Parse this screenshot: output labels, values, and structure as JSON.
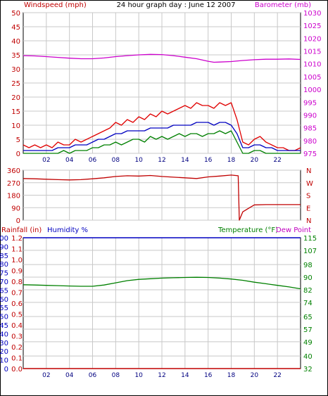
{
  "colors": {
    "wind_speed": "#e00000",
    "wind_avg": "#0000c0",
    "wind_min": "#008000",
    "barometer": "#cc00cc",
    "direction": "#c00000",
    "rainfall": "#c00000",
    "humidity": "#0000c0",
    "temperature": "#008000",
    "dew_point": "#c000c0",
    "grid": "#c8c8c8",
    "frame": "#000000"
  },
  "chart_data": [
    {
      "type": "line",
      "title": "24 hour graph day : June 12 2007",
      "ylabel": "Windspeed (mph)",
      "y2label": "Barometer (mb)",
      "y_ticks": [
        "0",
        "5",
        "10",
        "15",
        "20",
        "25",
        "30",
        "35",
        "40",
        "45",
        "50"
      ],
      "y2_ticks": [
        "975",
        "980",
        "985",
        "990",
        "995",
        "1000",
        "1005",
        "1010",
        "1015",
        "1020",
        "1025",
        "1030"
      ],
      "x_ticks": [
        "02",
        "04",
        "06",
        "08",
        "10",
        "12",
        "14",
        "16",
        "18",
        "20",
        "22"
      ],
      "ylim": [
        0,
        50
      ],
      "y2lim": [
        975,
        1030
      ],
      "xlim": [
        0,
        24
      ],
      "grid": true,
      "series": [
        {
          "key": "wind_gust",
          "axis": "left",
          "x": [
            0,
            0.5,
            1,
            1.5,
            2,
            2.5,
            3,
            3.5,
            4,
            4.5,
            5,
            5.5,
            6,
            6.5,
            7,
            7.5,
            8,
            8.5,
            9,
            9.5,
            10,
            10.5,
            11,
            11.5,
            12,
            12.5,
            13,
            13.5,
            14,
            14.5,
            15,
            15.5,
            16,
            16.5,
            17,
            17.5,
            18,
            18.5,
            19,
            19.5,
            20,
            20.5,
            21,
            21.5,
            22,
            22.5,
            23,
            23.5,
            24
          ],
          "y": [
            3,
            2,
            3,
            2,
            3,
            2,
            4,
            3,
            3,
            5,
            4,
            5,
            6,
            7,
            8,
            9,
            11,
            10,
            12,
            11,
            13,
            12,
            14,
            13,
            15,
            14,
            15,
            16,
            17,
            16,
            18,
            17,
            17,
            16,
            18,
            17,
            18,
            12,
            4,
            3,
            5,
            6,
            4,
            3,
            2,
            2,
            1,
            1,
            2
          ]
        },
        {
          "key": "wind_avg",
          "axis": "left",
          "x": [
            0,
            0.5,
            1,
            1.5,
            2,
            2.5,
            3,
            3.5,
            4,
            4.5,
            5,
            5.5,
            6,
            6.5,
            7,
            7.5,
            8,
            8.5,
            9,
            9.5,
            10,
            10.5,
            11,
            11.5,
            12,
            12.5,
            13,
            13.5,
            14,
            14.5,
            15,
            15.5,
            16,
            16.5,
            17,
            17.5,
            18,
            18.5,
            19,
            19.5,
            20,
            20.5,
            21,
            21.5,
            22,
            22.5,
            23,
            23.5,
            24
          ],
          "y": [
            1,
            1,
            1,
            1,
            1,
            1,
            2,
            2,
            2,
            3,
            3,
            3,
            4,
            5,
            5,
            6,
            7,
            7,
            8,
            8,
            8,
            8,
            9,
            9,
            9,
            9,
            10,
            10,
            10,
            10,
            11,
            11,
            11,
            10,
            11,
            11,
            10,
            7,
            2,
            2,
            3,
            3,
            2,
            2,
            1,
            1,
            1,
            1,
            1
          ]
        },
        {
          "key": "wind_min",
          "axis": "left",
          "x": [
            0,
            0.5,
            1,
            1.5,
            2,
            2.5,
            3,
            3.5,
            4,
            4.5,
            5,
            5.5,
            6,
            6.5,
            7,
            7.5,
            8,
            8.5,
            9,
            9.5,
            10,
            10.5,
            11,
            11.5,
            12,
            12.5,
            13,
            13.5,
            14,
            14.5,
            15,
            15.5,
            16,
            16.5,
            17,
            17.5,
            18,
            18.5,
            19,
            19.5,
            20,
            20.5,
            21,
            21.5,
            22,
            22.5,
            23,
            23.5,
            24
          ],
          "y": [
            0,
            0,
            0,
            0,
            0,
            0,
            0,
            1,
            0,
            1,
            1,
            1,
            2,
            2,
            3,
            3,
            4,
            3,
            4,
            5,
            5,
            4,
            6,
            5,
            6,
            5,
            6,
            7,
            6,
            7,
            7,
            6,
            7,
            7,
            8,
            7,
            8,
            4,
            0,
            0,
            1,
            1,
            0,
            0,
            0,
            0,
            0,
            0,
            0
          ]
        },
        {
          "key": "barometer",
          "axis": "right",
          "x": [
            0,
            1,
            2,
            3,
            4,
            5,
            6,
            7,
            8,
            9,
            10,
            11,
            12,
            13,
            14,
            15,
            16,
            16.5,
            17,
            18,
            19,
            20,
            21,
            22,
            23,
            24
          ],
          "y": [
            1013.2,
            1013.1,
            1012.8,
            1012.5,
            1012.2,
            1012.0,
            1012.0,
            1012.3,
            1012.8,
            1013.2,
            1013.5,
            1013.7,
            1013.6,
            1013.2,
            1012.6,
            1012.0,
            1011.0,
            1010.6,
            1010.7,
            1010.9,
            1011.3,
            1011.6,
            1011.8,
            1011.8,
            1011.9,
            1011.7
          ]
        }
      ]
    },
    {
      "type": "line",
      "ylabel": "",
      "y_ticks": [
        "0",
        "90",
        "180",
        "270",
        "360"
      ],
      "y2_ticks": [
        "N",
        "W",
        "S",
        "E",
        "N"
      ],
      "ylim": [
        0,
        360
      ],
      "xlim": [
        0,
        24
      ],
      "grid": true,
      "series": [
        {
          "key": "direction",
          "x": [
            0,
            1,
            2,
            3,
            4,
            5,
            6,
            7,
            8,
            9,
            10,
            11,
            12,
            13,
            14,
            15,
            16,
            17,
            18,
            18.6,
            18.7,
            19,
            19.5,
            20,
            21,
            22,
            23,
            24
          ],
          "y": [
            300,
            298,
            295,
            292,
            290,
            292,
            298,
            305,
            315,
            320,
            318,
            322,
            315,
            310,
            305,
            300,
            312,
            318,
            325,
            320,
            0,
            60,
            85,
            110,
            112,
            112,
            112,
            112
          ]
        }
      ]
    },
    {
      "type": "line",
      "ylabel": "Rainfall (in)",
      "ylabel2": "Humidity %",
      "y2label": "Temperature (°F)",
      "y2label2": "Dew Point",
      "rain_ticks": [
        "0.0",
        "0.1",
        "0.2",
        "0.3",
        "0.4",
        "0.5",
        "0.6",
        "0.7",
        "0.8",
        "0.9",
        "1.0",
        "1.1",
        "1.2"
      ],
      "humidity_ticks": [
        "0",
        "10",
        "20",
        "30",
        "40",
        "45",
        "50",
        "55",
        "60",
        "65",
        "70",
        "75",
        "80",
        "85",
        "90",
        "100"
      ],
      "temp_ticks": [
        "32",
        "40",
        "49",
        "57",
        "65",
        "74",
        "82",
        "90",
        "98",
        "107",
        "115"
      ],
      "x_ticks": [
        "02",
        "04",
        "06",
        "08",
        "10",
        "12",
        "14",
        "16",
        "18",
        "20",
        "22"
      ],
      "y2lim": [
        32,
        115
      ],
      "xlim": [
        0,
        24
      ],
      "grid": true,
      "series": [
        {
          "key": "rainfall",
          "axis": "left",
          "x": [
            0,
            24
          ],
          "y": [
            0,
            0
          ]
        },
        {
          "key": "humidity",
          "axis": "left",
          "x": [
            0,
            24
          ],
          "y": [
            100,
            100
          ]
        },
        {
          "key": "temperature",
          "axis": "right",
          "x": [
            0,
            1,
            2,
            3,
            4,
            5,
            6,
            7,
            8,
            9,
            10,
            11,
            12,
            13,
            14,
            15,
            16,
            17,
            18,
            19,
            20,
            21,
            22,
            23,
            24
          ],
          "y": [
            85.2,
            85.0,
            84.8,
            84.6,
            84.4,
            84.2,
            84.2,
            85.0,
            86.4,
            87.8,
            88.6,
            89.0,
            89.4,
            89.6,
            89.8,
            89.9,
            89.8,
            89.4,
            88.8,
            88.0,
            86.8,
            85.8,
            84.8,
            83.8,
            82.6
          ]
        }
      ]
    }
  ]
}
